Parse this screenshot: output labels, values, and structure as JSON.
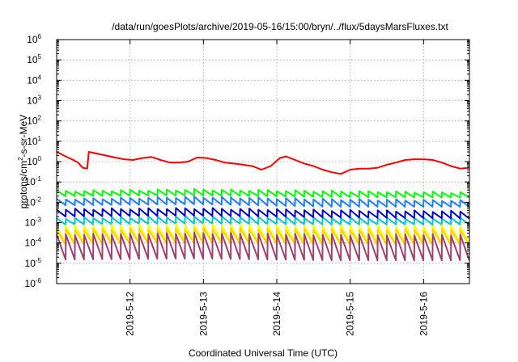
{
  "chart_data": {
    "type": "line",
    "title": "/data/run/goesPlots/archive/2019-05-16/15:00/bryn/../flux/5daysMarsFluxes.txt",
    "xlabel": "Coordinated Universal Time (UTC)",
    "ylabel": {
      "base": "protons/cm",
      "sup": "2",
      "rest": "-s-sr-MeV"
    },
    "x_range": [
      "2019-05-11 00:00",
      "2019-05-16 15:00"
    ],
    "x_ticks": [
      "2019-5-12",
      "2019-5-13",
      "2019-5-14",
      "2019-5-15",
      "2019-5-16"
    ],
    "y_scale": "log",
    "y_range": [
      1e-06,
      1000000.0
    ],
    "y_ticks": [
      {
        "base": "10",
        "exp": "-6"
      },
      {
        "base": "10",
        "exp": "-5"
      },
      {
        "base": "10",
        "exp": "-4"
      },
      {
        "base": "10",
        "exp": "-3"
      },
      {
        "base": "10",
        "exp": "-2"
      },
      {
        "base": "10",
        "exp": "-1"
      },
      {
        "base": "10",
        "exp": "0"
      },
      {
        "base": "10",
        "exp": "1"
      },
      {
        "base": "10",
        "exp": "2"
      },
      {
        "base": "10",
        "exp": "3"
      },
      {
        "base": "10",
        "exp": "4"
      },
      {
        "base": "10",
        "exp": "5"
      },
      {
        "base": "10",
        "exp": "6"
      }
    ],
    "grid": true,
    "series": [
      {
        "color": "#ff0000",
        "sawtooth": false,
        "points": [
          [
            "2019-05-11 00:00",
            3.0
          ],
          [
            "2019-05-11 03:00",
            1.8
          ],
          [
            "2019-05-11 05:00",
            1.3
          ],
          [
            "2019-05-11 07:00",
            0.9
          ],
          [
            "2019-05-11 08:30",
            0.5
          ],
          [
            "2019-05-11 10:00",
            0.45
          ],
          [
            "2019-05-11 10:30",
            3.0
          ],
          [
            "2019-05-11 13:00",
            2.5
          ],
          [
            "2019-05-11 16:00",
            2.0
          ],
          [
            "2019-05-11 19:00",
            1.6
          ],
          [
            "2019-05-11 22:00",
            1.3
          ],
          [
            "2019-05-12 01:00",
            1.2
          ],
          [
            "2019-05-12 04:00",
            1.5
          ],
          [
            "2019-05-12 07:00",
            1.7
          ],
          [
            "2019-05-12 10:00",
            1.2
          ],
          [
            "2019-05-12 13:00",
            0.9
          ],
          [
            "2019-05-12 16:00",
            0.9
          ],
          [
            "2019-05-12 19:00",
            1.0
          ],
          [
            "2019-05-12 22:00",
            1.6
          ],
          [
            "2019-05-13 01:00",
            1.5
          ],
          [
            "2019-05-13 04:00",
            1.2
          ],
          [
            "2019-05-13 07:00",
            0.9
          ],
          [
            "2019-05-13 10:00",
            0.8
          ],
          [
            "2019-05-13 13:00",
            0.7
          ],
          [
            "2019-05-13 16:00",
            0.6
          ],
          [
            "2019-05-13 19:00",
            0.4
          ],
          [
            "2019-05-13 22:00",
            0.6
          ],
          [
            "2019-05-14 01:00",
            1.5
          ],
          [
            "2019-05-14 03:00",
            1.8
          ],
          [
            "2019-05-14 06:00",
            1.2
          ],
          [
            "2019-05-14 09:00",
            0.8
          ],
          [
            "2019-05-14 12:00",
            0.6
          ],
          [
            "2019-05-14 15:00",
            0.4
          ],
          [
            "2019-05-14 18:00",
            0.3
          ],
          [
            "2019-05-14 21:00",
            0.25
          ],
          [
            "2019-05-15 00:00",
            0.4
          ],
          [
            "2019-05-15 03:00",
            0.45
          ],
          [
            "2019-05-15 06:00",
            0.45
          ],
          [
            "2019-05-15 09:00",
            0.5
          ],
          [
            "2019-05-15 12:00",
            0.7
          ],
          [
            "2019-05-15 15:00",
            0.9
          ],
          [
            "2019-05-15 18:00",
            1.2
          ],
          [
            "2019-05-15 21:00",
            1.3
          ],
          [
            "2019-05-16 00:00",
            1.3
          ],
          [
            "2019-05-16 03:00",
            1.2
          ],
          [
            "2019-05-16 06:00",
            0.9
          ],
          [
            "2019-05-16 09:00",
            0.6
          ],
          [
            "2019-05-16 12:00",
            0.45
          ],
          [
            "2019-05-16 15:00",
            0.5
          ]
        ]
      },
      {
        "color": "#00ff00",
        "sawtooth": true,
        "peak": [
          0.035,
          0.042,
          0.035,
          0.03
        ],
        "trough": [
          0.02,
          0.022,
          0.018,
          0.017
        ]
      },
      {
        "color": "#2080ff",
        "sawtooth": true,
        "peak": [
          0.014,
          0.018,
          0.014,
          0.012
        ],
        "trough": [
          0.007,
          0.008,
          0.006,
          0.006
        ]
      },
      {
        "color": "#00c8c8",
        "sawtooth": true,
        "peak": [
          0.0016,
          0.002,
          0.0017,
          0.0016
        ],
        "trough": [
          0.0008,
          0.0009,
          0.0008,
          0.0008
        ]
      },
      {
        "color": "#0000cc",
        "sawtooth": true,
        "peak": [
          0.0045,
          0.005,
          0.004,
          0.0035
        ],
        "trough": [
          0.002,
          0.0022,
          0.0018,
          0.0016
        ]
      },
      {
        "color": "#ffff00",
        "sawtooth": true,
        "peak": [
          0.0007,
          0.0008,
          0.0007,
          0.0007
        ],
        "trough": [
          0.0001,
          0.00012,
          0.0001,
          0.0001
        ]
      },
      {
        "color": "#ffd000",
        "sawtooth": true,
        "peak": [
          0.00045,
          0.0005,
          0.00045,
          0.00045
        ],
        "trough": [
          8e-05,
          0.0001,
          8e-05,
          8e-05
        ]
      },
      {
        "color": "#a04070",
        "sawtooth": true,
        "peak": [
          0.00025,
          0.0003,
          0.00025,
          0.00025
        ],
        "trough": [
          1.5e-05,
          1.7e-05,
          1.4e-05,
          1.4e-05
        ]
      }
    ]
  }
}
